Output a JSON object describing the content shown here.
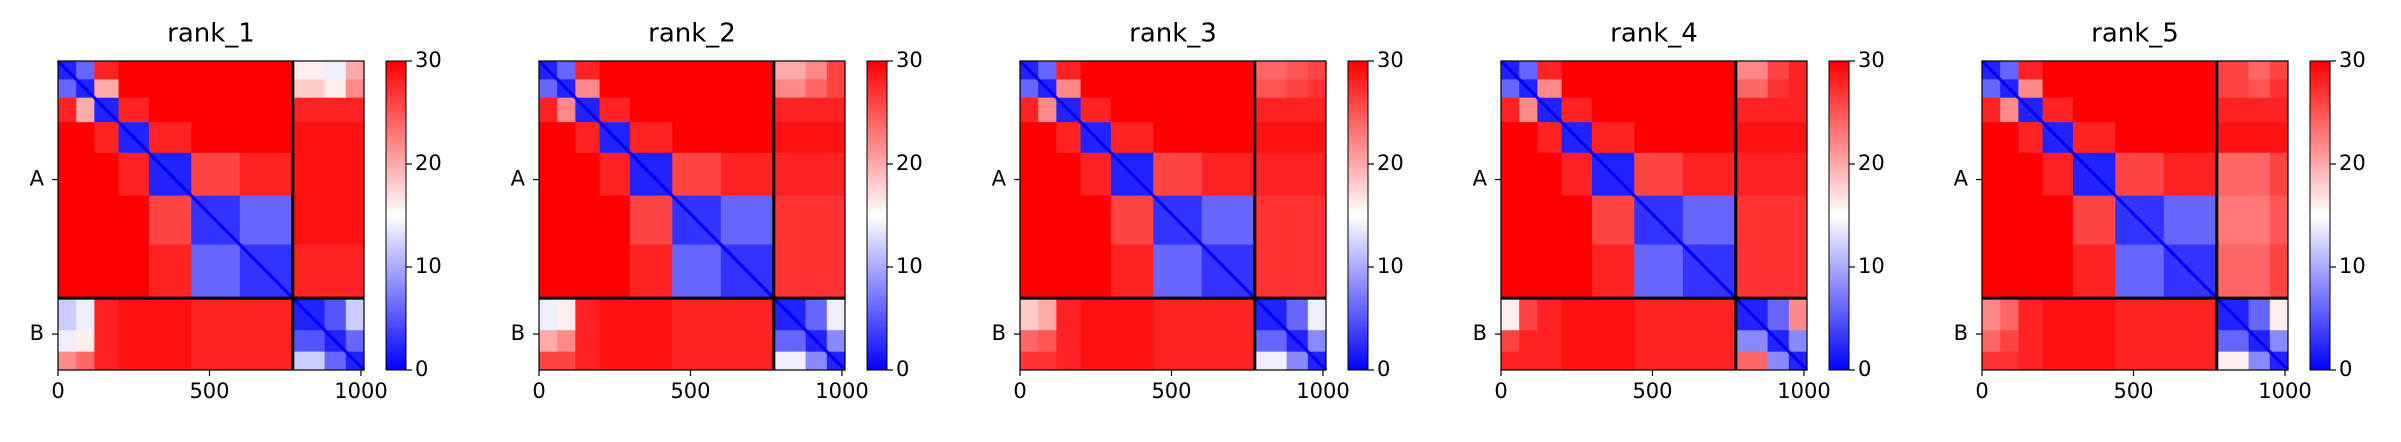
{
  "chart_data": [
    {
      "type": "heatmap",
      "title": "rank_1",
      "edges": [
        0,
        60,
        120,
        200,
        300,
        440,
        600,
        775,
        880,
        950,
        1010
      ],
      "values": [
        [
          2,
          6,
          28,
          30,
          30,
          30,
          30,
          16,
          14,
          20
        ],
        [
          6,
          2,
          20,
          30,
          30,
          30,
          30,
          18,
          16,
          22
        ],
        [
          28,
          20,
          2,
          28,
          30,
          30,
          30,
          28,
          28,
          28
        ],
        [
          30,
          30,
          28,
          2,
          28,
          30,
          30,
          29,
          29,
          29
        ],
        [
          30,
          30,
          30,
          28,
          2,
          26,
          28,
          29,
          29,
          29
        ],
        [
          30,
          30,
          30,
          30,
          26,
          3,
          6,
          29,
          29,
          29
        ],
        [
          30,
          30,
          30,
          30,
          28,
          6,
          3,
          28,
          28,
          28
        ],
        [
          12,
          14,
          28,
          29,
          29,
          28,
          28,
          2,
          5,
          12
        ],
        [
          14,
          16,
          28,
          29,
          29,
          28,
          28,
          5,
          2,
          6
        ],
        [
          22,
          24,
          28,
          29,
          29,
          28,
          28,
          12,
          6,
          2
        ]
      ],
      "chains": [
        "A",
        "B"
      ],
      "chain_ends": [
        775,
        1010
      ],
      "xlim": [
        0,
        1010
      ],
      "xticks": [
        0,
        500,
        1000
      ],
      "zlim": [
        0,
        30
      ],
      "zticks": [
        0,
        10,
        20,
        30
      ],
      "colors": [
        "#0000ff",
        "#ffffff",
        "#ff0000"
      ]
    },
    {
      "type": "heatmap",
      "title": "rank_2",
      "edges": [
        0,
        60,
        120,
        200,
        300,
        440,
        600,
        775,
        880,
        950,
        1010
      ],
      "values": [
        [
          2,
          6,
          28,
          30,
          30,
          30,
          30,
          20,
          22,
          26
        ],
        [
          6,
          2,
          22,
          30,
          30,
          30,
          30,
          22,
          24,
          26
        ],
        [
          28,
          22,
          2,
          28,
          30,
          30,
          30,
          28,
          28,
          28
        ],
        [
          30,
          30,
          28,
          2,
          28,
          30,
          30,
          29,
          29,
          29
        ],
        [
          30,
          30,
          30,
          28,
          2,
          26,
          28,
          28,
          28,
          28
        ],
        [
          30,
          30,
          30,
          30,
          26,
          3,
          6,
          27,
          27,
          27
        ],
        [
          30,
          30,
          30,
          30,
          28,
          6,
          3,
          27,
          27,
          27
        ],
        [
          14,
          16,
          28,
          29,
          29,
          28,
          28,
          2,
          6,
          14
        ],
        [
          20,
          22,
          28,
          29,
          29,
          28,
          28,
          6,
          2,
          8
        ],
        [
          26,
          26,
          28,
          29,
          29,
          28,
          28,
          14,
          8,
          2
        ]
      ],
      "chains": [
        "A",
        "B"
      ],
      "chain_ends": [
        775,
        1010
      ],
      "xlim": [
        0,
        1010
      ],
      "xticks": [
        0,
        500,
        1000
      ],
      "zlim": [
        0,
        30
      ],
      "zticks": [
        0,
        10,
        20,
        30
      ],
      "colors": [
        "#0000ff",
        "#ffffff",
        "#ff0000"
      ]
    },
    {
      "type": "heatmap",
      "title": "rank_3",
      "edges": [
        0,
        60,
        120,
        200,
        300,
        440,
        600,
        775,
        880,
        950,
        1010
      ],
      "values": [
        [
          2,
          6,
          28,
          30,
          30,
          30,
          30,
          24,
          25,
          26
        ],
        [
          6,
          2,
          22,
          30,
          30,
          30,
          30,
          25,
          26,
          27
        ],
        [
          28,
          22,
          2,
          28,
          30,
          30,
          30,
          28,
          28,
          28
        ],
        [
          30,
          30,
          28,
          2,
          28,
          30,
          30,
          29,
          29,
          29
        ],
        [
          30,
          30,
          30,
          28,
          2,
          26,
          28,
          28,
          28,
          28
        ],
        [
          30,
          30,
          30,
          30,
          26,
          3,
          6,
          27,
          27,
          27
        ],
        [
          30,
          30,
          30,
          30,
          28,
          6,
          3,
          27,
          27,
          27
        ],
        [
          18,
          20,
          28,
          29,
          29,
          28,
          28,
          2,
          6,
          14
        ],
        [
          24,
          25,
          28,
          29,
          29,
          28,
          28,
          6,
          2,
          8
        ],
        [
          27,
          27,
          28,
          29,
          29,
          28,
          28,
          14,
          8,
          2
        ]
      ],
      "chains": [
        "A",
        "B"
      ],
      "chain_ends": [
        775,
        1010
      ],
      "xlim": [
        0,
        1010
      ],
      "xticks": [
        0,
        500,
        1000
      ],
      "zlim": [
        0,
        30
      ],
      "zticks": [
        0,
        10,
        20,
        30
      ],
      "colors": [
        "#0000ff",
        "#ffffff",
        "#ff0000"
      ]
    },
    {
      "type": "heatmap",
      "title": "rank_4",
      "edges": [
        0,
        60,
        120,
        200,
        300,
        440,
        600,
        775,
        880,
        950,
        1010
      ],
      "values": [
        [
          2,
          6,
          28,
          30,
          30,
          30,
          30,
          22,
          26,
          28
        ],
        [
          6,
          2,
          22,
          30,
          30,
          30,
          30,
          24,
          27,
          28
        ],
        [
          28,
          22,
          2,
          28,
          30,
          30,
          30,
          28,
          28,
          28
        ],
        [
          30,
          30,
          28,
          2,
          28,
          30,
          30,
          29,
          29,
          29
        ],
        [
          30,
          30,
          30,
          28,
          2,
          26,
          28,
          28,
          28,
          28
        ],
        [
          30,
          30,
          30,
          30,
          26,
          3,
          6,
          27,
          27,
          27
        ],
        [
          30,
          30,
          30,
          30,
          28,
          6,
          3,
          27,
          27,
          27
        ],
        [
          16,
          26,
          28,
          29,
          29,
          28,
          28,
          2,
          6,
          22
        ],
        [
          26,
          28,
          28,
          29,
          29,
          28,
          28,
          8,
          2,
          8
        ],
        [
          28,
          28,
          28,
          29,
          29,
          28,
          28,
          24,
          8,
          2
        ]
      ],
      "chains": [
        "A",
        "B"
      ],
      "chain_ends": [
        775,
        1010
      ],
      "xlim": [
        0,
        1010
      ],
      "xticks": [
        0,
        500,
        1000
      ],
      "zlim": [
        0,
        30
      ],
      "zticks": [
        0,
        10,
        20,
        30
      ],
      "colors": [
        "#0000ff",
        "#ffffff",
        "#ff0000"
      ]
    },
    {
      "type": "heatmap",
      "title": "rank_5",
      "edges": [
        0,
        60,
        120,
        200,
        300,
        440,
        600,
        775,
        880,
        950,
        1010
      ],
      "values": [
        [
          2,
          6,
          28,
          30,
          30,
          30,
          30,
          26,
          24,
          26
        ],
        [
          6,
          2,
          22,
          30,
          30,
          30,
          30,
          26,
          25,
          27
        ],
        [
          28,
          22,
          2,
          28,
          30,
          30,
          30,
          28,
          28,
          28
        ],
        [
          30,
          30,
          28,
          2,
          28,
          30,
          30,
          29,
          29,
          29
        ],
        [
          30,
          30,
          30,
          28,
          2,
          26,
          28,
          24,
          24,
          26
        ],
        [
          30,
          30,
          30,
          30,
          26,
          3,
          6,
          23,
          23,
          25
        ],
        [
          30,
          30,
          30,
          30,
          28,
          6,
          3,
          24,
          24,
          26
        ],
        [
          22,
          24,
          28,
          29,
          29,
          28,
          28,
          2,
          6,
          16
        ],
        [
          24,
          26,
          28,
          29,
          29,
          28,
          28,
          6,
          2,
          8
        ],
        [
          27,
          27,
          28,
          29,
          29,
          28,
          28,
          16,
          8,
          2
        ]
      ],
      "chains": [
        "A",
        "B"
      ],
      "chain_ends": [
        775,
        1010
      ],
      "xlim": [
        0,
        1010
      ],
      "xticks": [
        0,
        500,
        1000
      ],
      "zlim": [
        0,
        30
      ],
      "zticks": [
        0,
        10,
        20,
        30
      ],
      "colors": [
        "#0000ff",
        "#ffffff",
        "#ff0000"
      ]
    }
  ]
}
